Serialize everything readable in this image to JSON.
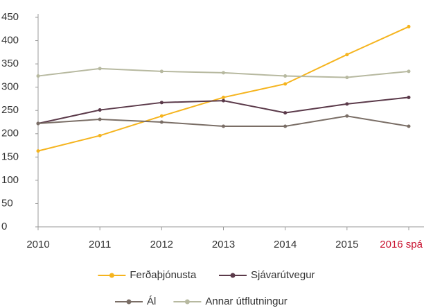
{
  "chart_data": {
    "type": "line",
    "categories": [
      "2010",
      "2011",
      "2012",
      "2013",
      "2014",
      "2015",
      "2016 spá"
    ],
    "category_colors": [
      "#333333",
      "#333333",
      "#333333",
      "#333333",
      "#333333",
      "#333333",
      "#c8102e"
    ],
    "series": [
      {
        "name": "Ferðaþjónusta",
        "color": "#f5b41e",
        "values": [
          163,
          196,
          238,
          278,
          307,
          370,
          430
        ]
      },
      {
        "name": "Sjávarútvegur",
        "color": "#5b3a4a",
        "values": [
          222,
          251,
          267,
          271,
          245,
          264,
          278
        ]
      },
      {
        "name": "Ál",
        "color": "#7a6e66",
        "values": [
          222,
          231,
          225,
          216,
          216,
          238,
          216
        ]
      },
      {
        "name": "Annar útflutningur",
        "color": "#b7b9a0",
        "values": [
          324,
          340,
          334,
          331,
          324,
          321,
          334
        ]
      }
    ],
    "ylim": [
      0,
      450
    ],
    "yticks": [
      0,
      50,
      100,
      150,
      200,
      250,
      300,
      350,
      400,
      450
    ],
    "grid": false,
    "legend": "bottom"
  }
}
